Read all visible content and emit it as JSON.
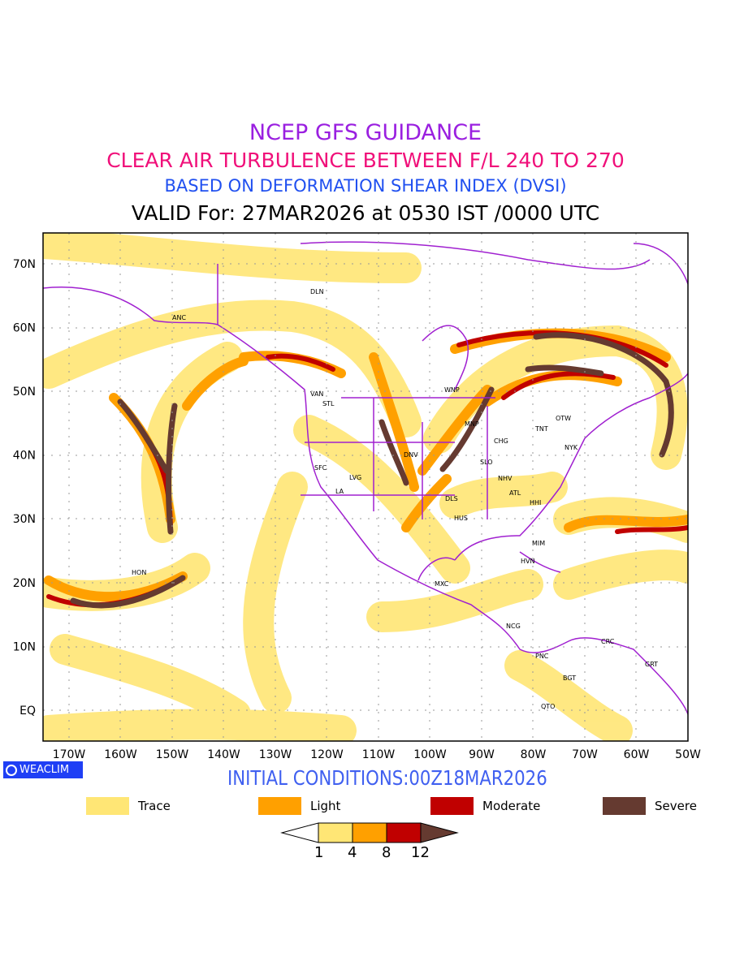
{
  "title": {
    "line1": "NCEP GFS GUIDANCE",
    "line2": "CLEAR AIR TURBULENCE BETWEEN F/L 240 TO 270",
    "line3": "BASED ON DEFORMATION SHEAR INDEX (DVSI)",
    "line4": "VALID For: 27MAR2026 at 0530 IST /0000 UTC"
  },
  "logo": "WEACLIM",
  "initial_conditions": "INITIAL CONDITIONS:00Z18MAR2026",
  "colors": {
    "trace": "#ffe675",
    "light": "#ffa000",
    "moderate": "#c00000",
    "severe": "#653a30",
    "coast": "#a020d0"
  },
  "legend": [
    {
      "label": "Trace"
    },
    {
      "label": "Light"
    },
    {
      "label": "Moderate"
    },
    {
      "label": "Severe"
    }
  ],
  "colorbar": {
    "ticks": [
      "1",
      "4",
      "8",
      "12"
    ]
  },
  "axes": {
    "lon": [
      "170W",
      "160W",
      "150W",
      "140W",
      "130W",
      "120W",
      "110W",
      "100W",
      "90W",
      "80W",
      "70W",
      "60W",
      "50W"
    ],
    "lat": [
      "EQ",
      "10N",
      "20N",
      "30N",
      "40N",
      "50N",
      "60N",
      "70N"
    ]
  },
  "stations": [
    "DLN",
    "ANC",
    "VAN",
    "STL",
    "WNP",
    "MNP",
    "OTW",
    "TNT",
    "CHG",
    "NYK",
    "DNV",
    "SFC",
    "SLO",
    "LVG",
    "NHV",
    "LA",
    "ATL",
    "DLS",
    "HHI",
    "HUS",
    "MIM",
    "HON",
    "HVN",
    "MXC",
    "NCG",
    "CRC",
    "PNC",
    "GRT",
    "BGT",
    "QTO"
  ]
}
